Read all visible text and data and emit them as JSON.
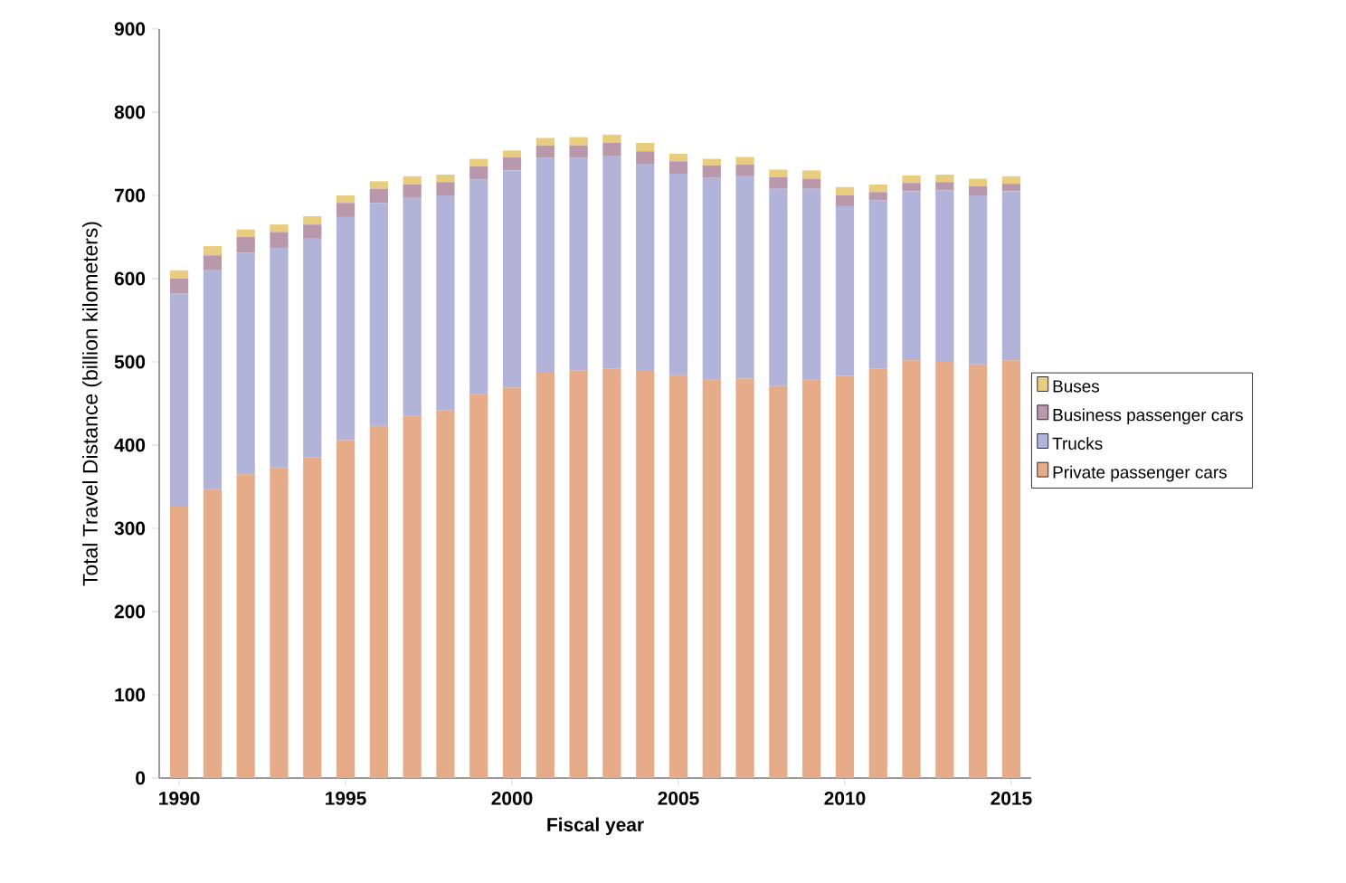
{
  "chart_data": {
    "type": "bar",
    "stacked": true,
    "xlabel": "Fiscal year",
    "ylabel": "Total Travel Distance (billion kilometers)",
    "x": [
      1990,
      1991,
      1992,
      1993,
      1994,
      1995,
      1996,
      1997,
      1998,
      1999,
      2000,
      2001,
      2002,
      2003,
      2004,
      2005,
      2006,
      2007,
      2008,
      2009,
      2010,
      2011,
      2012,
      2013,
      2014,
      2015
    ],
    "xlim": [
      1989.4,
      2015.6
    ],
    "xticks": [
      1990,
      1995,
      2000,
      2005,
      2010,
      2015
    ],
    "ylim": [
      0,
      900
    ],
    "yticks": [
      0,
      100,
      200,
      300,
      400,
      500,
      600,
      700,
      800,
      900
    ],
    "legend": "right",
    "grid": false,
    "series": [
      {
        "name": "Private passenger cars",
        "color": "#e6ac8a",
        "values": [
          326,
          347,
          365,
          373,
          385,
          406,
          423,
          435,
          442,
          461,
          469,
          487,
          490,
          492,
          489,
          484,
          479,
          480,
          471,
          479,
          483,
          492,
          502,
          501,
          497,
          502
        ]
      },
      {
        "name": "Trucks",
        "color": "#b1b3d8",
        "values": [
          256,
          263,
          266,
          264,
          263,
          268,
          268,
          262,
          258,
          258,
          261,
          258,
          255,
          255,
          249,
          242,
          242,
          243,
          237,
          229,
          204,
          202,
          203,
          205,
          203,
          203
        ]
      },
      {
        "name": "Business passenger cars",
        "color": "#b998ab",
        "values": [
          18,
          18,
          19,
          19,
          17,
          17,
          17,
          16,
          16,
          16,
          16,
          15,
          15,
          16,
          15,
          15,
          15,
          14,
          14,
          12,
          13,
          10,
          10,
          10,
          11,
          9
        ]
      },
      {
        "name": "Buses",
        "color": "#e8cd7f",
        "values": [
          10,
          11,
          9,
          9,
          10,
          9,
          9,
          10,
          9,
          9,
          8,
          9,
          10,
          10,
          10,
          9,
          8,
          9,
          9,
          10,
          10,
          9,
          9,
          9,
          9,
          9
        ]
      }
    ]
  }
}
